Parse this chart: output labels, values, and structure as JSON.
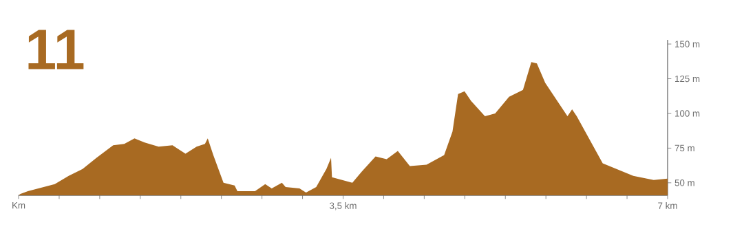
{
  "chart_data": {
    "type": "area",
    "title": "11",
    "color": "#a86a22",
    "x": [
      0,
      0.02,
      0.1,
      0.39,
      0.54,
      0.69,
      0.84,
      1.02,
      1.14,
      1.25,
      1.36,
      1.51,
      1.66,
      1.8,
      1.92,
      2.01,
      2.04,
      2.1,
      2.21,
      2.33,
      2.36,
      2.55,
      2.66,
      2.73,
      2.84,
      2.88,
      3.03,
      3.1,
      3.21,
      3.32,
      3.37,
      3.38,
      3.49,
      3.6,
      3.7,
      3.85,
      3.97,
      4.09,
      4.22,
      4.4,
      4.59,
      4.68,
      4.74,
      4.81,
      4.88,
      5.03,
      5.14,
      5.29,
      5.44,
      5.53,
      5.59,
      5.68,
      5.92,
      5.97,
      6.02,
      6.3,
      6.63,
      6.85,
      7.0
    ],
    "values": [
      41,
      42,
      44,
      49,
      55,
      60,
      68,
      77,
      78,
      82,
      79,
      76,
      77,
      71,
      76,
      78,
      82,
      70,
      50,
      48,
      44,
      44,
      49,
      46,
      50,
      47,
      46,
      43,
      47,
      60,
      68,
      54,
      52,
      50,
      58,
      69,
      67,
      73,
      62,
      63,
      70,
      87,
      114,
      116,
      109,
      98,
      100,
      112,
      117,
      137,
      136,
      122,
      98,
      103,
      98,
      64,
      55,
      52,
      53
    ],
    "xlim": [
      0,
      7
    ],
    "ylim": [
      41,
      153
    ],
    "xticks": [
      {
        "value": 0,
        "label": "Km"
      },
      {
        "value": 0.4375,
        "label": null
      },
      {
        "value": 0.875,
        "label": null
      },
      {
        "value": 1.3125,
        "label": null
      },
      {
        "value": 1.75,
        "label": null
      },
      {
        "value": 2.1875,
        "label": null
      },
      {
        "value": 2.625,
        "label": null
      },
      {
        "value": 3.0625,
        "label": null
      },
      {
        "value": 3.5,
        "label": "3,5 km"
      },
      {
        "value": 3.9375,
        "label": null
      },
      {
        "value": 4.375,
        "label": null
      },
      {
        "value": 4.8125,
        "label": null
      },
      {
        "value": 5.25,
        "label": null
      },
      {
        "value": 5.6875,
        "label": null
      },
      {
        "value": 6.125,
        "label": null
      },
      {
        "value": 6.5625,
        "label": null
      },
      {
        "value": 7,
        "label": "7 km"
      }
    ],
    "yticks": [
      {
        "value": 50,
        "label": "50 m"
      },
      {
        "value": 75,
        "label": "75 m"
      },
      {
        "value": 100,
        "label": "100 m"
      },
      {
        "value": 125,
        "label": "125 m"
      },
      {
        "value": 150,
        "label": "150 m"
      }
    ]
  }
}
